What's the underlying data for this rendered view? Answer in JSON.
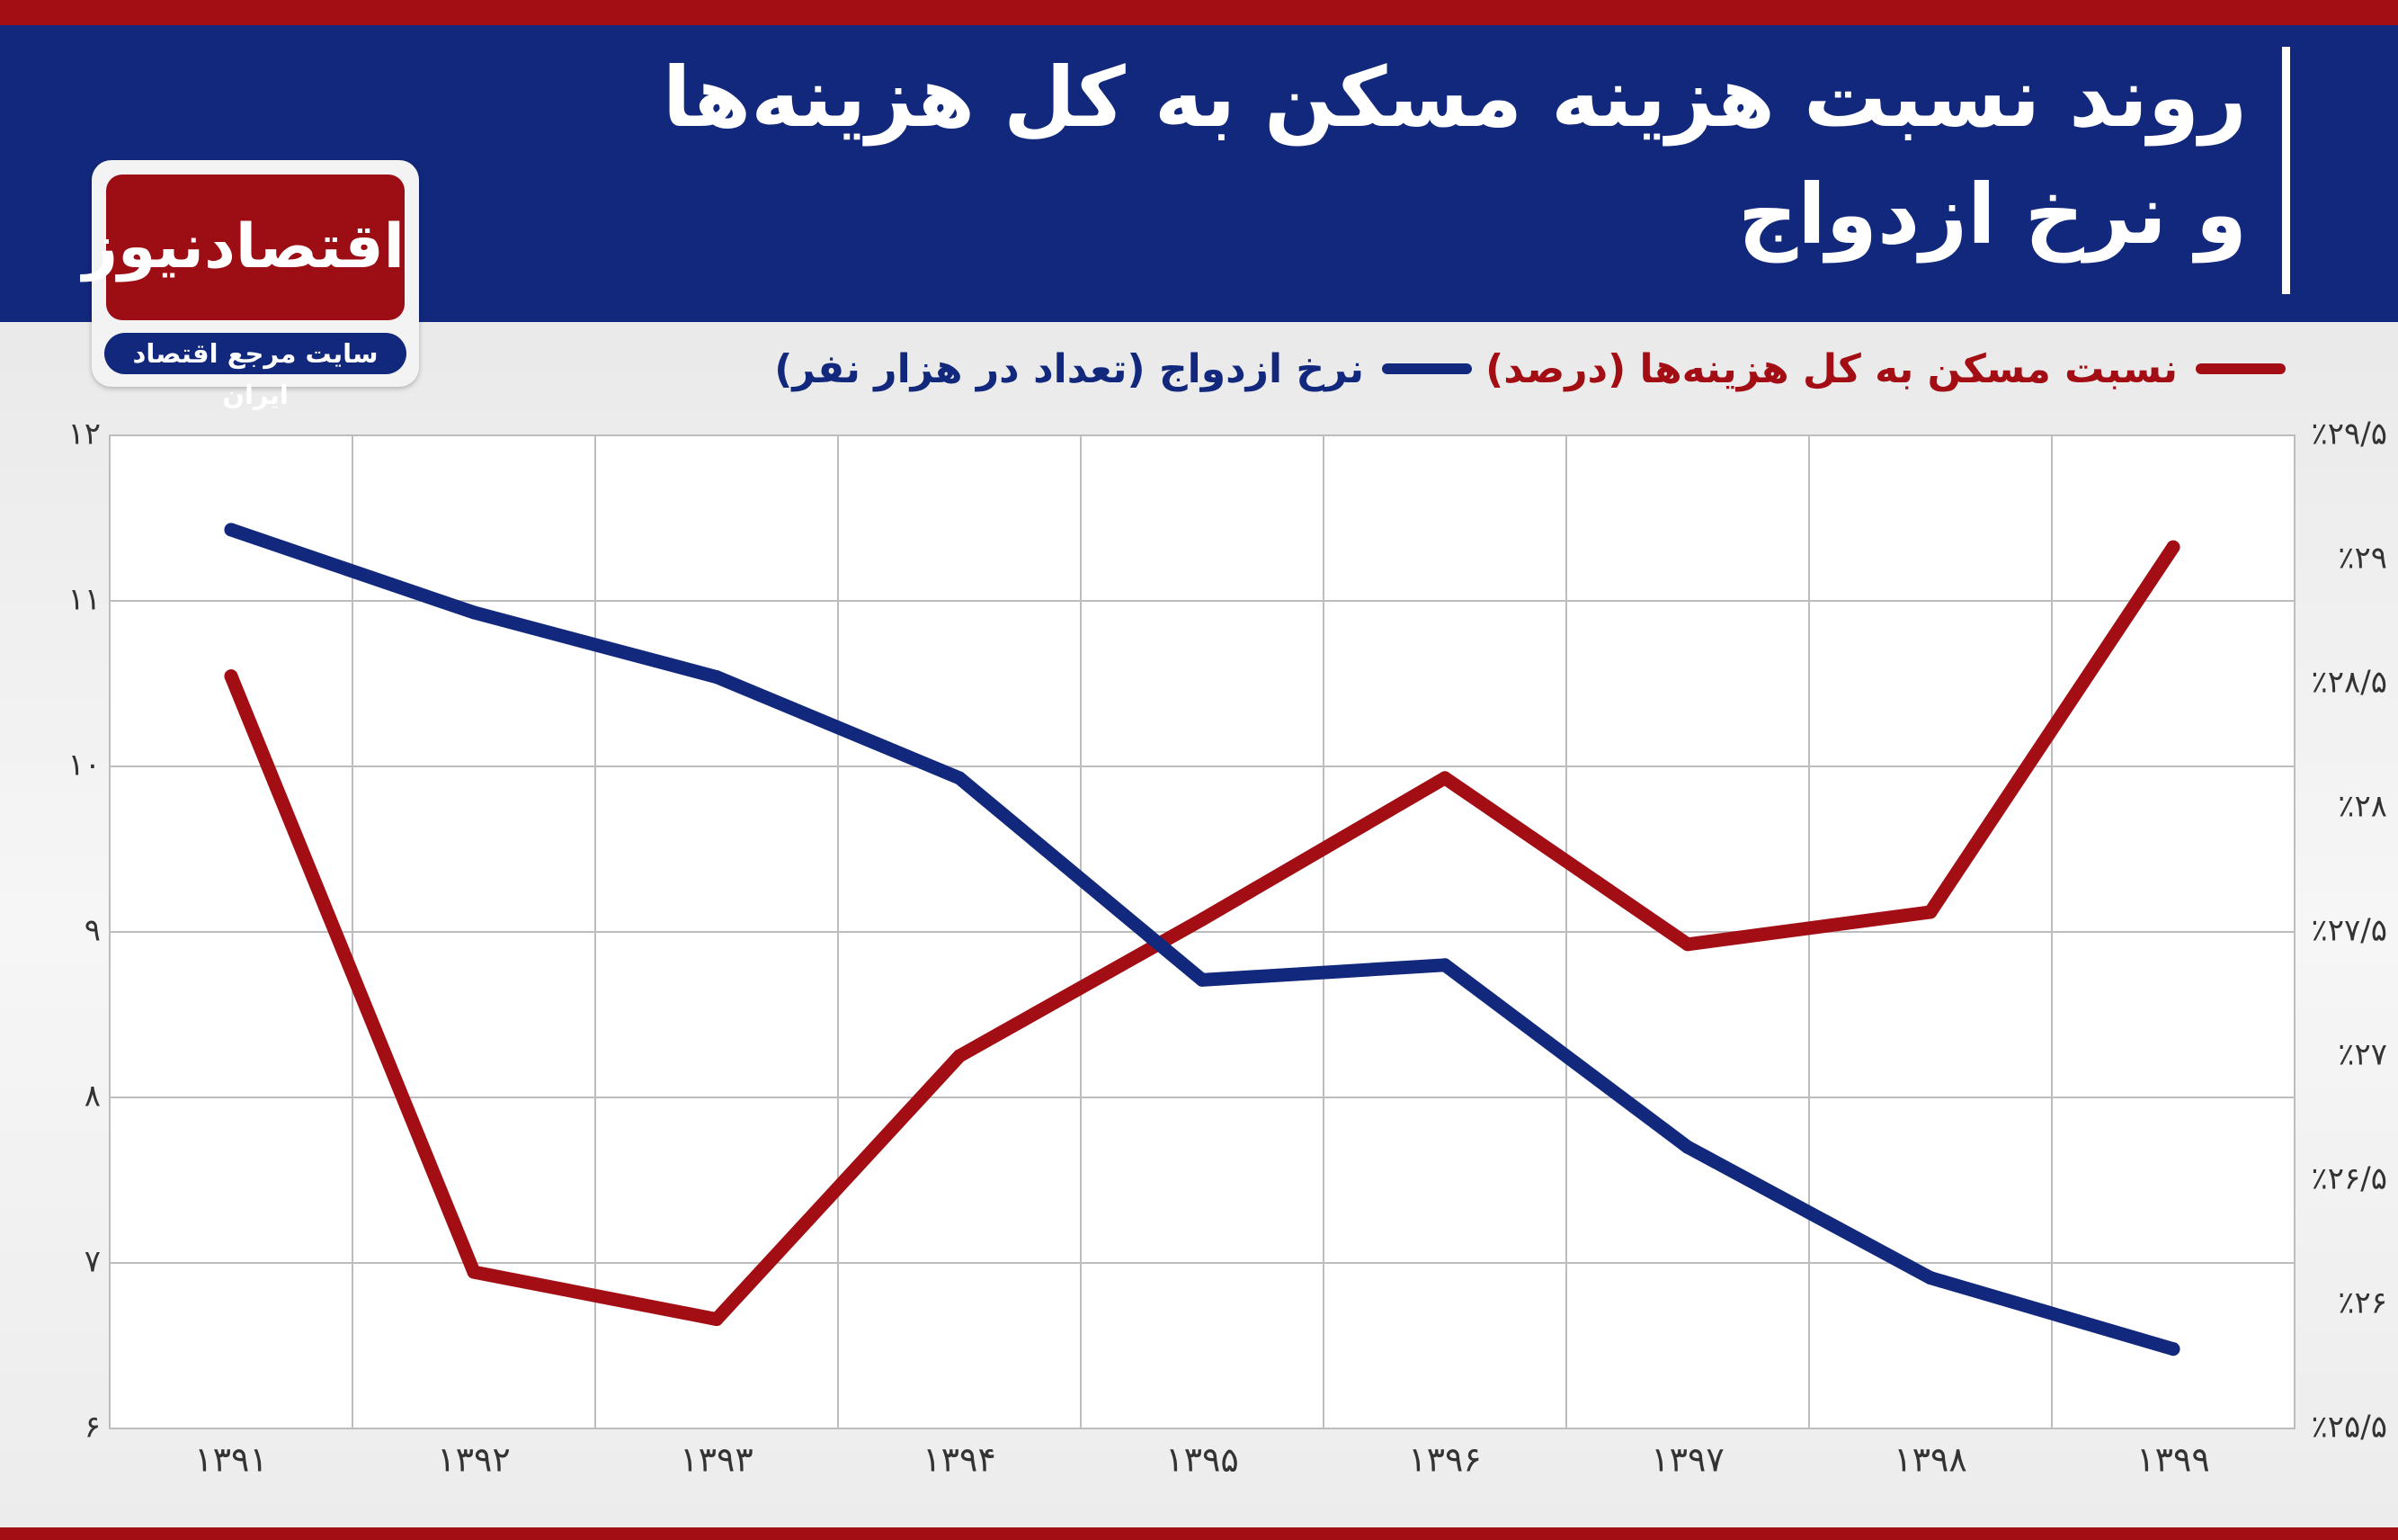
{
  "header": {
    "title_line1": "روند نسبت هزینه مسکن به کل هزینه‌ها",
    "title_line2": "و نرخ ازدواج"
  },
  "logo": {
    "name": "اقتصادنیوز",
    "tagline": "سایت مرجع اقتصاد ایران"
  },
  "colors": {
    "brand_red": "#a30d14",
    "brand_blue": "#12287c"
  },
  "chart_data": {
    "type": "line",
    "x": [
      "۱۳۹۱",
      "۱۳۹۲",
      "۱۳۹۳",
      "۱۳۹۴",
      "۱۳۹۵",
      "۱۳۹۶",
      "۱۳۹۷",
      "۱۳۹۸",
      "۱۳۹۹"
    ],
    "left_axis": {
      "ticks": [
        "۶",
        "۷",
        "۸",
        "۹",
        "۱۰",
        "۱۱",
        "۱۲"
      ],
      "ylim": [
        6,
        12
      ]
    },
    "right_axis": {
      "ticks": [
        "٪۲۵/۵",
        "٪۲۶",
        "٪۲۶/۵",
        "٪۲۷",
        "٪۲۷/۵",
        "٪۲۸",
        "٪۲۸/۵",
        "٪۲۹",
        "٪۲۹/۵"
      ],
      "ylim": [
        25.5,
        29.5
      ]
    },
    "series": [
      {
        "name": "نسبت مسکن به کل هزینه‌ها (درصد)",
        "axis": "right",
        "color": "#a30d14",
        "values": [
          28.53,
          26.13,
          25.94,
          27.0,
          27.55,
          28.12,
          27.45,
          27.58,
          29.05
        ]
      },
      {
        "name": "نرخ ازدواج (تعداد در هزار نفر)",
        "axis": "left",
        "color": "#12287c",
        "values": [
          11.43,
          10.93,
          10.54,
          9.93,
          8.71,
          8.8,
          7.7,
          6.91,
          6.48
        ]
      }
    ],
    "grid": true,
    "legend": "top"
  }
}
